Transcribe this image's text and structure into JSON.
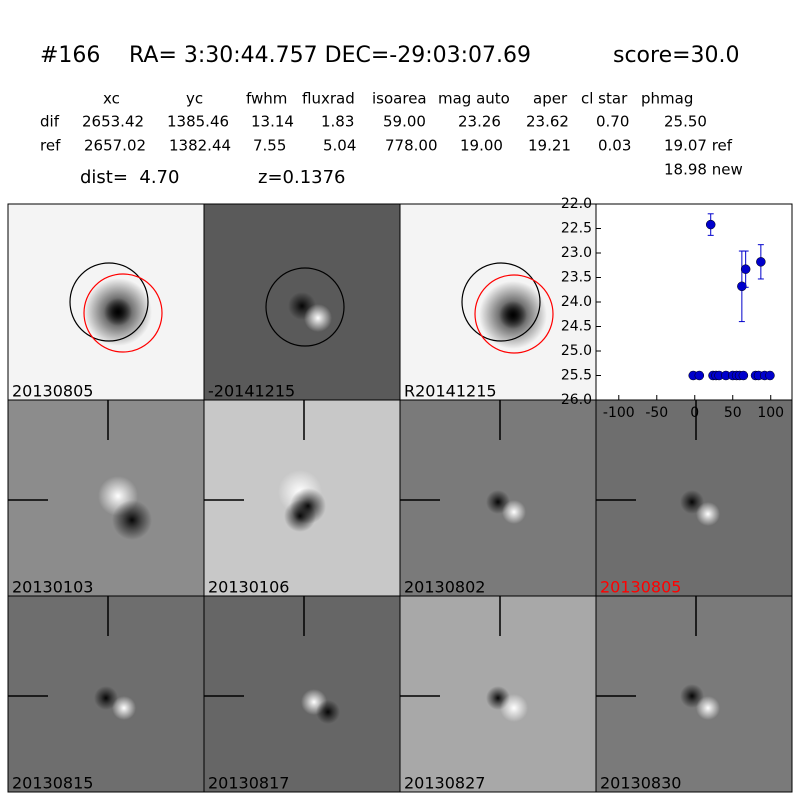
{
  "header": {
    "id": "#166",
    "coords": "RA= 3:30:44.757 DEC=-29:03:07.69",
    "score": "score=30.0"
  },
  "table": {
    "columns": [
      "xc",
      "yc",
      "fwhm",
      "fluxrad",
      "isoarea",
      "mag auto",
      "aper",
      "cl star",
      "phmag"
    ],
    "rows": [
      [
        "dif",
        "2653.42",
        "1385.46",
        "13.14",
        "1.83",
        "59.00",
        "23.26",
        "23.62",
        "0.70",
        "25.50"
      ],
      [
        "ref",
        "2657.02",
        "1382.44",
        "7.55",
        "5.04",
        "778.00",
        "19.00",
        "19.21",
        "0.03",
        "19.07 ref"
      ]
    ],
    "extra": "18.98 new"
  },
  "dist": "dist=  4.70",
  "z": "z=0.1376",
  "panels": [
    "20130805",
    "-20141215",
    "R20141215",
    "20130103",
    "20130106",
    "20130802",
    "20130805",
    "20130815",
    "20130817",
    "20130827",
    "20130830"
  ],
  "chart_data": {
    "type": "scatter",
    "xlim": [
      -130,
      128
    ],
    "ylim": [
      26.0,
      22.0
    ],
    "xticks": [
      -100,
      -50,
      0,
      50,
      100
    ],
    "yticks": [
      {
        "value": 22.0,
        "label": "22.0"
      },
      22.5,
      {
        "value": 23.0,
        "label": "23.0"
      },
      23.5,
      {
        "value": 24.0,
        "label": "24.0"
      },
      24.5,
      {
        "value": 25.0,
        "label": "25.0"
      },
      25.5,
      {
        "value": 26.0,
        "label": "26.0"
      }
    ],
    "series": [
      {
        "color": "#0000cc",
        "x": [
          21,
          62,
          67,
          87,
          -2,
          6,
          24,
          28,
          32,
          41,
          50,
          55,
          59,
          64,
          80,
          84,
          92,
          99
        ],
        "values": [
          22.42,
          23.68,
          23.33,
          23.18,
          25.5,
          25.5,
          25.5,
          25.5,
          25.5,
          25.5,
          25.5,
          25.5,
          25.5,
          25.5,
          25.5,
          25.5,
          25.5,
          25.5
        ],
        "errors": [
          0.22,
          0.72,
          0.37,
          0.35,
          0.07,
          0.07,
          0.07,
          0.07,
          0.07,
          0.07,
          0.07,
          0.07,
          0.07,
          0.07,
          0.07,
          0.07,
          0.07,
          0.07
        ]
      }
    ]
  }
}
